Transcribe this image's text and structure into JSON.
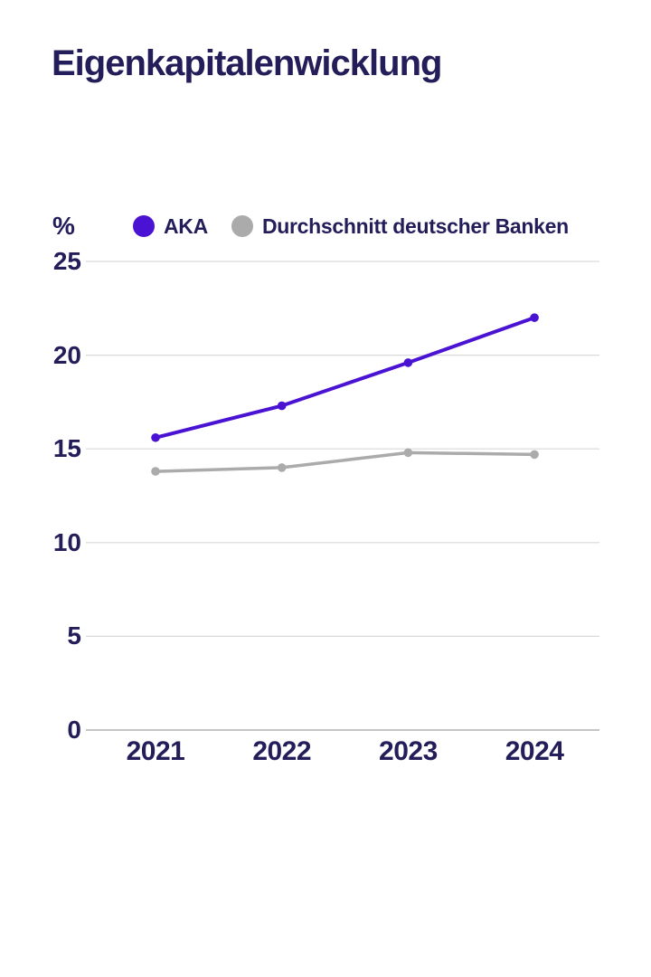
{
  "page": {
    "title": "Eigenkapitalenwicklung"
  },
  "colors": {
    "text_navy": "#231d5a",
    "aka_purple": "#4a12d3",
    "banks_gray": "#ababab",
    "gridline": "#d9d9d9",
    "axis_line": "#b2b2b2",
    "background": "#ffffff"
  },
  "chart_data": {
    "type": "line",
    "title": "Eigenkapitalenwicklung",
    "unit_label": "%",
    "categories": [
      "2021",
      "2022",
      "2023",
      "2024"
    ],
    "series": [
      {
        "name": "AKA",
        "color": "#4a12d3",
        "values": [
          15.6,
          17.3,
          19.6,
          22.0
        ]
      },
      {
        "name": "Durchschnitt deutscher Banken",
        "color": "#ababab",
        "values": [
          13.8,
          14.0,
          14.8,
          14.7
        ]
      }
    ],
    "ylim": [
      0,
      25
    ],
    "yticks": [
      25,
      20,
      15,
      10,
      5,
      0
    ],
    "xlabel": "",
    "ylabel": "%",
    "grid": "horizontal",
    "legend_position": "top"
  }
}
